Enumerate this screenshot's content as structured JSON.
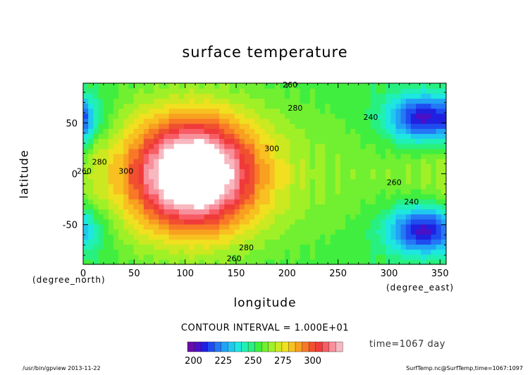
{
  "chart_data": {
    "type": "heatmap",
    "title": "surface temperature",
    "xlabel": "longitude",
    "ylabel": "latitude",
    "x_unit": "(degree_east)",
    "y_unit": "(degree_north)",
    "xlim": [
      0,
      356
    ],
    "ylim": [
      -89,
      89
    ],
    "x_ticks": [
      0,
      50,
      100,
      150,
      200,
      250,
      300,
      350
    ],
    "y_ticks": [
      -50,
      0,
      50
    ],
    "contour_interval_text": "CONTOUR INTERVAL = 1.000E+01",
    "time_text": "time=1067 day",
    "colorbar": {
      "min": 195,
      "max": 325,
      "step": 5,
      "tick_values": [
        200,
        225,
        250,
        275,
        300
      ],
      "colors": [
        "#6a0ca8",
        "#4a10c8",
        "#2020e0",
        "#1e4cf0",
        "#2478f5",
        "#22a2f5",
        "#20c8f0",
        "#1ee6e0",
        "#20f0b4",
        "#28f080",
        "#40ee40",
        "#70f030",
        "#a0f028",
        "#cce820",
        "#f0e020",
        "#f8c020",
        "#f8a020",
        "#f87828",
        "#f05030",
        "#f03a3a",
        "#f85c64",
        "#f8909c",
        "#f8b8c0"
      ]
    },
    "contour_labels": [
      {
        "text": "260",
        "lon": 203,
        "lat": 85
      },
      {
        "text": "280",
        "lon": 208,
        "lat": 62
      },
      {
        "text": "240",
        "lon": 282,
        "lat": 53
      },
      {
        "text": "280",
        "lon": 16,
        "lat": 9
      },
      {
        "text": "300",
        "lon": 42,
        "lat": 0
      },
      {
        "text": "300",
        "lon": 185,
        "lat": 22
      },
      {
        "text": "260",
        "lon": 1,
        "lat": 0
      },
      {
        "text": "260",
        "lon": 305,
        "lat": -11
      },
      {
        "text": "240",
        "lon": 322,
        "lat": -30
      },
      {
        "text": "280",
        "lon": 160,
        "lat": -75
      },
      {
        "text": "260",
        "lon": 148,
        "lat": -86
      }
    ],
    "fields": {
      "background_K": 253,
      "features": [
        {
          "type": "warm_pool",
          "lon": 108,
          "lat": 0,
          "r_lon": 58,
          "r_lat": 55,
          "peak_K": 330,
          "note": "subsolar hot region"
        },
        {
          "type": "warm_band",
          "lon": 108,
          "lat": 0,
          "r_lon": 95,
          "r_lat": 78,
          "peak_K": 282
        },
        {
          "type": "cold_cell",
          "lon": 335,
          "lat": 55,
          "r_lon": 40,
          "r_lat": 25,
          "min_K": 206
        },
        {
          "type": "cold_cell",
          "lon": 335,
          "lat": -55,
          "r_lon": 40,
          "r_lat": 25,
          "min_K": 206
        },
        {
          "type": "cold_edge",
          "lon": 0,
          "lat": 50,
          "r_lon": 10,
          "r_lat": 30,
          "min_K": 240
        }
      ]
    }
  },
  "footer": {
    "left": "/usr/bin/gpview  2013-11-22",
    "right": "SurfTemp.nc@SurfTemp,time=1067:1097"
  }
}
